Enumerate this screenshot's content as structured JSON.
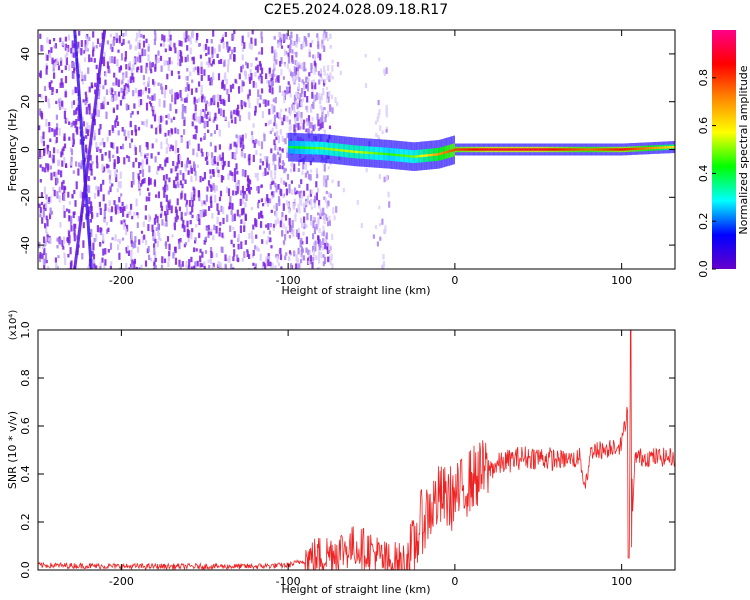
{
  "title": "C2E5.2024.028.09.18.R17",
  "colors": {
    "axis": "#000000",
    "snr_line": "#ee2222",
    "background": "#ffffff"
  },
  "chart_data": [
    {
      "type": "heatmap",
      "xlabel": "Height of straight line (km)",
      "ylabel": "Frequency (Hz)",
      "xlim": [
        -250,
        132
      ],
      "ylim": [
        -50,
        50
      ],
      "xticks": [
        -200,
        -100,
        0,
        100
      ],
      "yticks": [
        -40,
        -20,
        0,
        20,
        40
      ],
      "colorbar": {
        "label": "Normalized spectral amplitude",
        "range": [
          0.0,
          1.0
        ],
        "ticks": [
          0.0,
          0.2,
          0.4,
          0.6,
          0.8
        ],
        "colormap": [
          "#6600cc",
          "#0000ff",
          "#00ffff",
          "#00ff00",
          "#ffff00",
          "#ff8800",
          "#ff0000",
          "#ff0088"
        ]
      },
      "ridge": {
        "x": [
          -100,
          -80,
          -60,
          -40,
          -25,
          -10,
          0,
          20,
          50,
          80,
          100,
          130
        ],
        "freq": [
          1,
          0.5,
          -1,
          -2,
          -3,
          -2,
          0,
          0,
          0,
          0,
          0,
          1
        ],
        "amplitude": [
          0.4,
          0.5,
          0.55,
          0.45,
          0.5,
          0.7,
          0.8,
          0.9,
          0.9,
          0.75,
          0.85,
          0.6
        ]
      },
      "noise_extent_km": [
        -250,
        -75
      ],
      "streaks": [
        {
          "x_top": -228,
          "x_bottom": -218
        },
        {
          "x_top": -210,
          "x_bottom": -228
        }
      ]
    },
    {
      "type": "line",
      "xlabel": "Height of straight line (km)",
      "ylabel": "SNR (10 * v/v)",
      "yscale_note": "(x10⁴)",
      "xlim": [
        -250,
        132
      ],
      "ylim": [
        0.0,
        1.0
      ],
      "xticks": [
        -200,
        -100,
        0,
        100
      ],
      "yticks": [
        0.0,
        0.2,
        0.4,
        0.6,
        0.8,
        1.0
      ],
      "series": [
        {
          "x": [
            -250,
            -200,
            -120,
            -100,
            -85,
            -70,
            -60,
            -50,
            -45,
            -40,
            -30,
            -25,
            -20,
            -10,
            0,
            10,
            20,
            30,
            40,
            50,
            60,
            70,
            75,
            78,
            82,
            90,
            95,
            100,
            104,
            106,
            108,
            110,
            120,
            132
          ],
          "values": [
            0.02,
            0.015,
            0.015,
            0.02,
            0.05,
            0.08,
            0.1,
            0.08,
            0.05,
            0.03,
            0.03,
            0.08,
            0.2,
            0.3,
            0.3,
            0.38,
            0.42,
            0.45,
            0.47,
            0.47,
            0.46,
            0.46,
            0.47,
            0.35,
            0.5,
            0.5,
            0.52,
            0.52,
            0.7,
            0.1,
            0.46,
            0.47,
            0.47,
            0.47
          ]
        }
      ]
    }
  ]
}
